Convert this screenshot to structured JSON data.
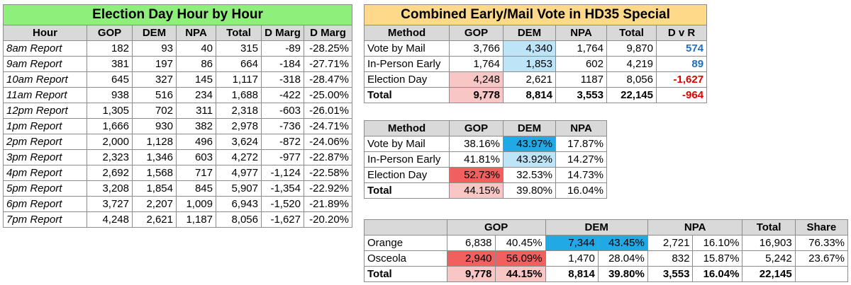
{
  "hourly": {
    "title": "Election Day Hour by Hour",
    "headers": [
      "Hour",
      "GOP",
      "DEM",
      "NPA",
      "Total",
      "D Marg",
      "D Marg"
    ],
    "rows": [
      [
        "8am Report",
        "182",
        "93",
        "40",
        "315",
        "-89",
        "-28.25%"
      ],
      [
        "9am Report",
        "381",
        "197",
        "86",
        "664",
        "-184",
        "-27.71%"
      ],
      [
        "10am Report",
        "645",
        "327",
        "145",
        "1,117",
        "-318",
        "-28.47%"
      ],
      [
        "11am Report",
        "938",
        "516",
        "234",
        "1,688",
        "-422",
        "-25.00%"
      ],
      [
        "12pm Report",
        "1,305",
        "702",
        "311",
        "2,318",
        "-603",
        "-26.01%"
      ],
      [
        "1pm Report",
        "1,666",
        "930",
        "382",
        "2,978",
        "-736",
        "-24.71%"
      ],
      [
        "2pm Report",
        "2,000",
        "1,128",
        "496",
        "3,624",
        "-872",
        "-24.06%"
      ],
      [
        "3pm Report",
        "2,323",
        "1,346",
        "603",
        "4,272",
        "-977",
        "-22.87%"
      ],
      [
        "4pm Report",
        "2,692",
        "1,568",
        "717",
        "4,977",
        "-1,124",
        "-22.58%"
      ],
      [
        "5pm Report",
        "3,208",
        "1,854",
        "845",
        "5,907",
        "-1,354",
        "-22.92%"
      ],
      [
        "6pm Report",
        "3,727",
        "2,207",
        "1,009",
        "6,943",
        "-1,520",
        "-21.89%"
      ],
      [
        "7pm Report",
        "4,248",
        "2,621",
        "1,187",
        "8,056",
        "-1,627",
        "-20.20%"
      ]
    ]
  },
  "combined": {
    "title": "Combined Early/Mail Vote in HD35 Special",
    "headers": [
      "Method",
      "GOP",
      "DEM",
      "NPA",
      "Total",
      "D v R"
    ],
    "rows": [
      [
        "Vote by Mail",
        "3,766",
        "4,340",
        "1,764",
        "9,870",
        "574"
      ],
      [
        "In-Person Early",
        "1,764",
        "1,853",
        "602",
        "4,219",
        "89"
      ],
      [
        "Election Day",
        "4,248",
        "2,621",
        "1187",
        "8,056",
        "-1,627"
      ],
      [
        "Total",
        "9,778",
        "8,814",
        "3,553",
        "22,145",
        "-964"
      ]
    ]
  },
  "shares": {
    "headers": [
      "Method",
      "GOP",
      "DEM",
      "NPA"
    ],
    "rows": [
      [
        "Vote by Mail",
        "38.16%",
        "43.97%",
        "17.87%"
      ],
      [
        "In-Person Early",
        "41.81%",
        "43.92%",
        "14.27%"
      ],
      [
        "Election Day",
        "52.73%",
        "32.53%",
        "14.73%"
      ],
      [
        "Total",
        "44.15%",
        "39.80%",
        "16.04%"
      ]
    ]
  },
  "county": {
    "headers": [
      "",
      "GOP",
      "DEM",
      "NPA",
      "Total",
      "Share"
    ],
    "rows": [
      [
        "Orange",
        "6,838",
        "40.45%",
        "7,344",
        "43.45%",
        "2,721",
        "16.10%",
        "16,903",
        "76.33%"
      ],
      [
        "Osceola",
        "2,940",
        "56.09%",
        "1,470",
        "28.04%",
        "832",
        "15.87%",
        "5,242",
        "23.67%"
      ],
      [
        "Total",
        "9,778",
        "44.15%",
        "8,814",
        "39.80%",
        "3,553",
        "16.04%",
        "22,145",
        ""
      ]
    ]
  },
  "colors": {
    "title_green": "#8ef07a",
    "title_orange": "#ffd98a",
    "header_gray": "#d9d9d9",
    "pink": "#f9c6c6",
    "light_blue": "#bde5f7",
    "blue_text": "#1f6fbf",
    "red_text": "#e00000"
  }
}
